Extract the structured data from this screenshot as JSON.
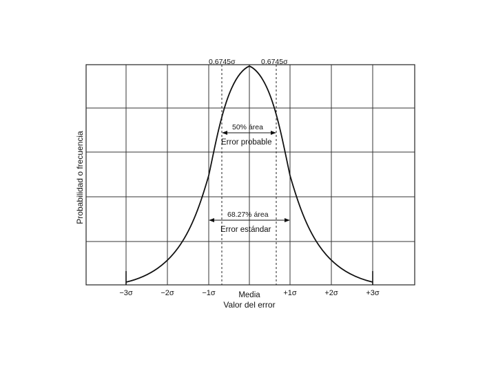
{
  "labels": {
    "top_left_sigma": "0.6745σ",
    "top_right_sigma": "0.6745σ",
    "area_50": "50% área",
    "error_probable": "Error probable",
    "area_6827": "68.27% área",
    "error_estandar": "Error estándar",
    "ylabel": "Probabilidad o frecuencia",
    "xlabel": "Valor del error"
  },
  "x_ticks": [
    "−3σ",
    "−2σ",
    "−1σ",
    "Media",
    "+1σ",
    "+2σ",
    "+3σ"
  ],
  "colors": {
    "ink": "#111111",
    "grid": "#222222",
    "background": "#ffffff"
  }
}
